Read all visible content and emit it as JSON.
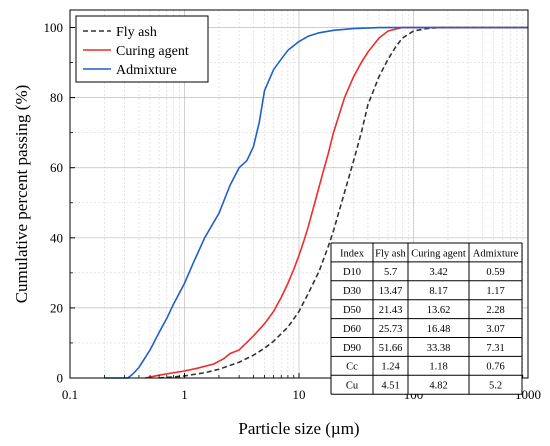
{
  "chart_data": {
    "type": "line",
    "xlabel": "Particle size (µm)",
    "ylabel": "Cumulative percent passing (%)",
    "xscale": "log",
    "xlim": [
      0.1,
      1000
    ],
    "ylim": [
      0,
      105
    ],
    "x_ticks": [
      0.1,
      1,
      10,
      100,
      1000
    ],
    "x_tick_labels": [
      "0.1",
      "1",
      "10",
      "100",
      "1000"
    ],
    "y_ticks": [
      0,
      20,
      40,
      60,
      80,
      100
    ],
    "y_tick_labels": [
      "0",
      "20",
      "40",
      "60",
      "80",
      "100"
    ],
    "grid": "on (major and minor)",
    "legend_position": "top-left",
    "series": [
      {
        "name": "Fly ash",
        "color": "#333333",
        "style": "dashed",
        "points": [
          [
            0.6,
            0
          ],
          [
            0.8,
            0.3
          ],
          [
            1,
            0.6
          ],
          [
            1.5,
            1.5
          ],
          [
            2,
            2.5
          ],
          [
            3,
            4.5
          ],
          [
            4,
            6.5
          ],
          [
            5,
            8.5
          ],
          [
            6,
            10.5
          ],
          [
            8,
            14.5
          ],
          [
            10,
            19
          ],
          [
            12,
            24
          ],
          [
            15,
            30.5
          ],
          [
            18,
            37.5
          ],
          [
            20,
            42
          ],
          [
            25,
            53
          ],
          [
            30,
            62
          ],
          [
            35,
            70
          ],
          [
            40,
            78
          ],
          [
            50,
            86
          ],
          [
            60,
            91
          ],
          [
            70,
            94.5
          ],
          [
            80,
            97
          ],
          [
            100,
            99
          ],
          [
            130,
            99.7
          ],
          [
            170,
            100
          ],
          [
            1000,
            100
          ]
        ]
      },
      {
        "name": "Curing agent",
        "color": "#ee2c2c",
        "style": "solid",
        "points": [
          [
            0.45,
            0
          ],
          [
            0.6,
            0.8
          ],
          [
            0.8,
            1.5
          ],
          [
            1,
            2
          ],
          [
            1.3,
            2.8
          ],
          [
            1.8,
            4
          ],
          [
            2.2,
            5.5
          ],
          [
            2.5,
            7
          ],
          [
            3,
            8
          ],
          [
            4,
            12
          ],
          [
            5,
            15.5
          ],
          [
            6,
            19
          ],
          [
            7,
            23
          ],
          [
            8,
            27
          ],
          [
            9,
            31
          ],
          [
            10,
            35
          ],
          [
            11,
            39
          ],
          [
            12,
            43
          ],
          [
            14,
            51
          ],
          [
            16,
            58
          ],
          [
            18,
            64
          ],
          [
            20,
            70
          ],
          [
            25,
            80
          ],
          [
            30,
            86
          ],
          [
            35,
            90
          ],
          [
            40,
            93
          ],
          [
            50,
            97
          ],
          [
            60,
            99
          ],
          [
            80,
            100
          ],
          [
            1000,
            100
          ]
        ]
      },
      {
        "name": "Admixture",
        "color": "#1f5fcc",
        "style": "solid",
        "points": [
          [
            0.2,
            0
          ],
          [
            0.32,
            0
          ],
          [
            0.35,
            1
          ],
          [
            0.4,
            3
          ],
          [
            0.5,
            8
          ],
          [
            0.6,
            13
          ],
          [
            0.7,
            17
          ],
          [
            0.8,
            21
          ],
          [
            1,
            27
          ],
          [
            1.2,
            33
          ],
          [
            1.5,
            40
          ],
          [
            2,
            47
          ],
          [
            2.5,
            55
          ],
          [
            3,
            60
          ],
          [
            3.5,
            62
          ],
          [
            4,
            66
          ],
          [
            4.5,
            73
          ],
          [
            5,
            82
          ],
          [
            6,
            88
          ],
          [
            7,
            91
          ],
          [
            8,
            93.5
          ],
          [
            10,
            96
          ],
          [
            12,
            97.5
          ],
          [
            15,
            98.5
          ],
          [
            20,
            99.2
          ],
          [
            30,
            99.7
          ],
          [
            50,
            100
          ],
          [
            1000,
            100
          ]
        ]
      }
    ],
    "table": {
      "columns": [
        "Index",
        "Fly ash",
        "Curing agent",
        "Admixture"
      ],
      "rows": [
        [
          "D10",
          "5.7",
          "3.42",
          "0.59"
        ],
        [
          "D30",
          "13.47",
          "8.17",
          "1.17"
        ],
        [
          "D50",
          "21.43",
          "13.62",
          "2.28"
        ],
        [
          "D60",
          "25.73",
          "16.48",
          "3.07"
        ],
        [
          "D90",
          "51.66",
          "33.38",
          "7.31"
        ],
        [
          "Cc",
          "1.24",
          "1.18",
          "0.76"
        ],
        [
          "Cu",
          "4.51",
          "4.82",
          "5.2"
        ]
      ]
    }
  }
}
